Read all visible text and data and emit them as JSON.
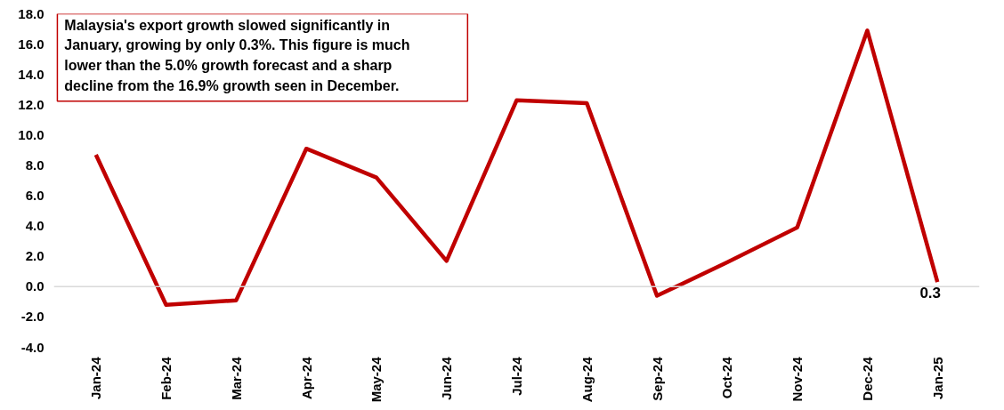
{
  "chart_data": {
    "type": "line",
    "categories": [
      "Jan-24",
      "Feb-24",
      "Mar-24",
      "Apr-24",
      "May-24",
      "Jun-24",
      "Jul-24",
      "Aug-24",
      "Sep-24",
      "Oct-24",
      "Nov-24",
      "Dec-24",
      "Jan-25"
    ],
    "series": [
      {
        "color": "#c00000",
        "values": [
          8.7,
          -1.2,
          -0.9,
          9.1,
          7.2,
          1.7,
          12.3,
          12.1,
          -0.6,
          1.6,
          3.9,
          16.9,
          0.3
        ],
        "value_labels": [
          null,
          null,
          null,
          null,
          null,
          null,
          null,
          null,
          null,
          null,
          null,
          null,
          "0.3"
        ]
      }
    ],
    "ylim": [
      -4,
      18
    ],
    "yticks": [
      {
        "value": -4,
        "label": "-4.0"
      },
      {
        "value": -2,
        "label": "-2.0"
      },
      {
        "value": 0,
        "label": "0.0"
      },
      {
        "value": 2,
        "label": "2.0"
      },
      {
        "value": 4,
        "label": "4.0"
      },
      {
        "value": 6,
        "label": "6.0"
      },
      {
        "value": 8,
        "label": "8.0"
      },
      {
        "value": 10,
        "label": "10.0"
      },
      {
        "value": 12,
        "label": "12.0"
      },
      {
        "value": 14,
        "label": "14.0"
      },
      {
        "value": 16,
        "label": "16.0"
      },
      {
        "value": 18,
        "label": "18.0"
      }
    ],
    "ref_lines": [
      {
        "axis": "y",
        "value": 0,
        "color": "#d9d9d9"
      }
    ],
    "annotations": [
      "Malaysia's export growth slowed significantly in January, growing by only 0.3%. This figure is much lower than the 5.0% growth forecast and a sharp decline from the 16.9% growth seen in December."
    ],
    "grid": false,
    "legend": false,
    "marker": "none",
    "line_style": "solid"
  }
}
